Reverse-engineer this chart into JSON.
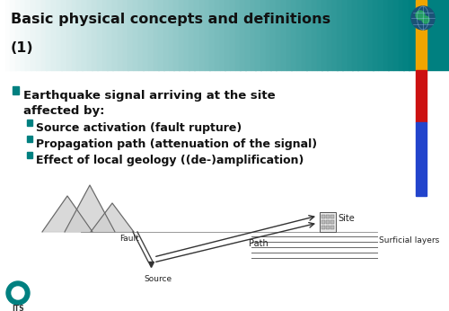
{
  "title_line1": "Basic physical concepts and definitions",
  "title_line2": "(1)",
  "title_text_color": "#111111",
  "accent_bar_colors_header": [
    "#f0a500"
  ],
  "accent_bar_colors_body": [
    "#cc1111",
    "#2244cc"
  ],
  "bullet_color": "#008080",
  "sub_bullet_items": [
    "Source activation (fault rupture)",
    "Propagation path (attenuation of the signal)",
    "Effect of local geology ((de-)amplification)"
  ],
  "body_bg": "#ffffff",
  "text_color": "#111111",
  "logo_color": "#008080"
}
